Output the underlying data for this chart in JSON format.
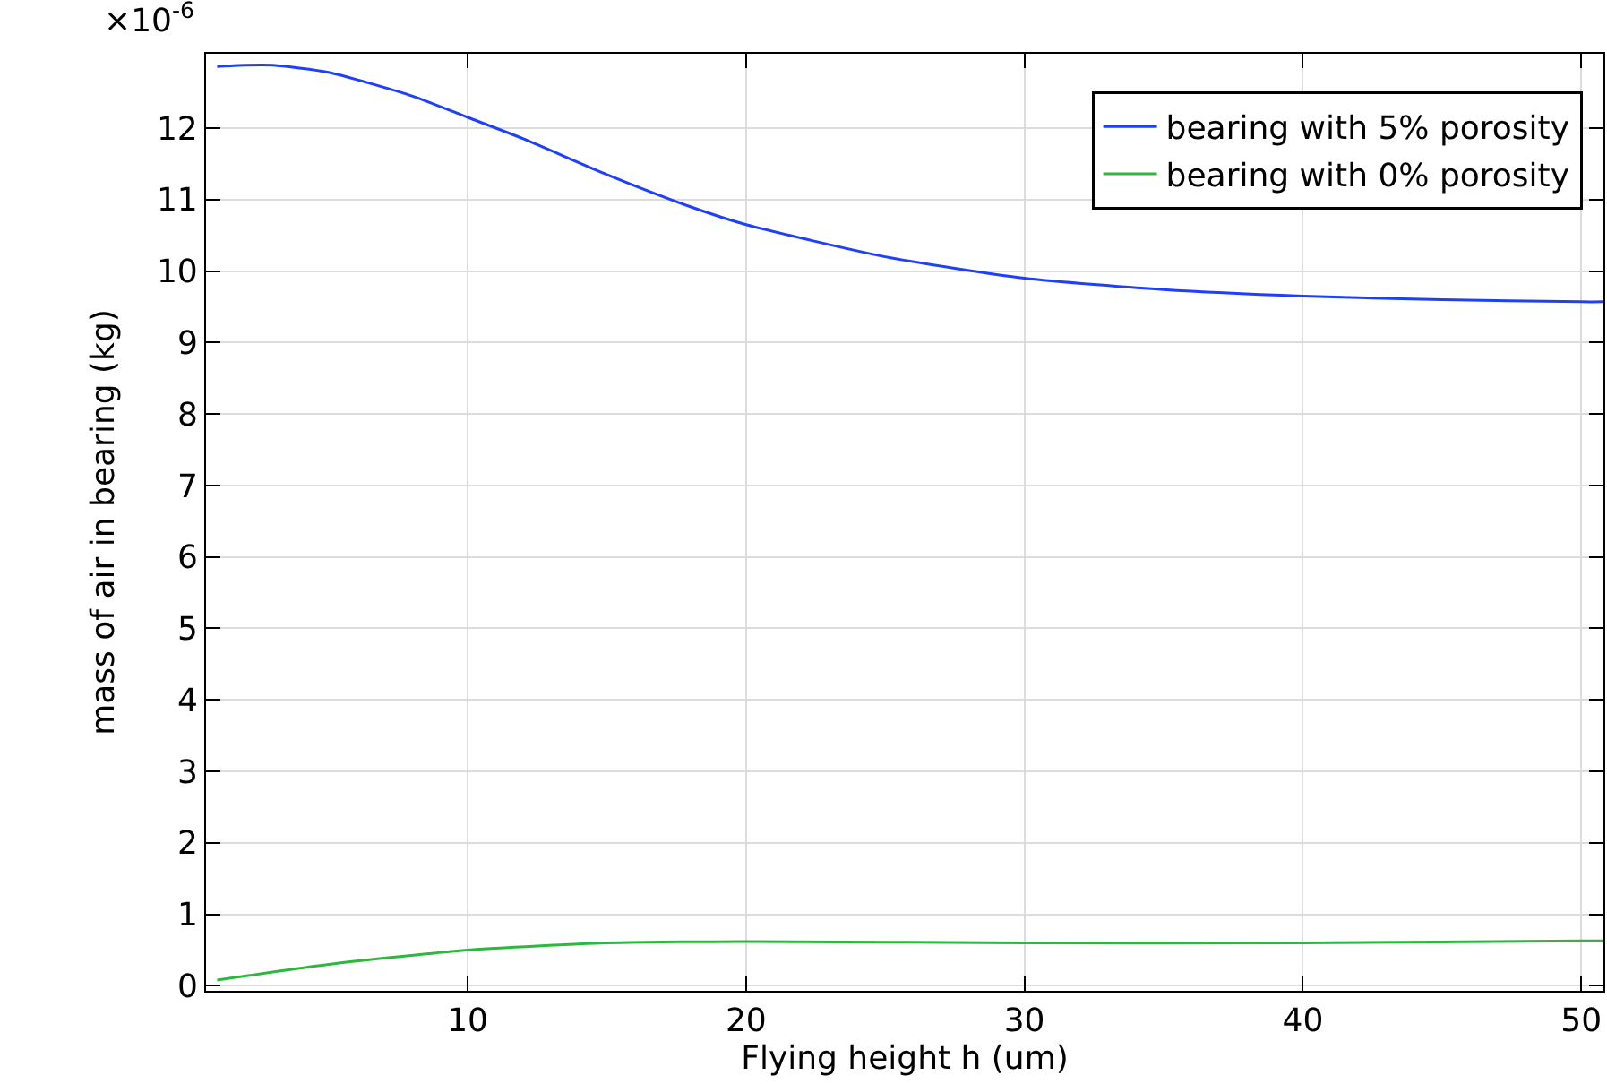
{
  "chart_data": {
    "type": "line",
    "xlabel": "Flying height h (um)",
    "ylabel": "mass of air in bearing (kg)",
    "annotations": [
      "×10$^{-6}$"
    ],
    "xlim": [
      0.6,
      50.8
    ],
    "xticks": [
      10,
      20,
      30,
      40,
      50
    ],
    "ylim": [
      -0.07,
      13.04
    ],
    "yticks": [
      0,
      1,
      2,
      3,
      4,
      5,
      6,
      7,
      8,
      9,
      10,
      11,
      12
    ],
    "grid": true,
    "legend": "top right",
    "marker": "none",
    "line_style": "solid",
    "series": [
      {
        "name": "bearing with 5% porosity",
        "color": "#1f3fff",
        "x": [
          1,
          2,
          3,
          5,
          8,
          10,
          12,
          15,
          18,
          20,
          25,
          30,
          35,
          40,
          45,
          50,
          50.8
        ],
        "values": [
          12.86,
          12.88,
          12.88,
          12.78,
          12.45,
          12.15,
          11.85,
          11.35,
          10.9,
          10.65,
          10.2,
          9.9,
          9.74,
          9.65,
          9.6,
          9.57,
          9.57
        ]
      },
      {
        "name": "bearing with 0% porosity",
        "color": "#2db83d",
        "x": [
          1,
          5,
          10,
          15,
          20,
          30,
          40,
          50,
          50.8
        ],
        "values": [
          0.08,
          0.3,
          0.5,
          0.6,
          0.62,
          0.6,
          0.6,
          0.63,
          0.63
        ]
      }
    ]
  }
}
